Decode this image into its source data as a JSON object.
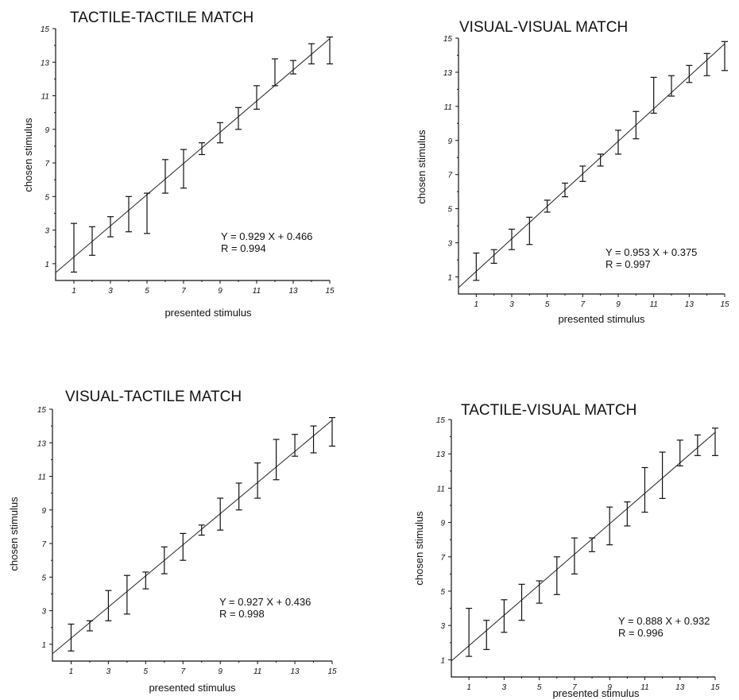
{
  "chart_data": [
    {
      "type": "scatter",
      "title": "TACTILE-TACTILE MATCH",
      "xlabel": "presented stimulus",
      "ylabel": "chosen stimulus",
      "xlim": [
        0,
        15
      ],
      "ylim": [
        0,
        15
      ],
      "xticks": [
        "1",
        "3",
        "5",
        "7",
        "9",
        "11",
        "13",
        "15"
      ],
      "yticks": [
        "1",
        "3",
        "5",
        "7",
        "9",
        "11",
        "13",
        "15"
      ],
      "equation": "Y = 0.929 X + 0.466",
      "r_text": "R = 0.994",
      "slope": 0.929,
      "intercept": 0.466,
      "x": [
        1,
        2,
        3,
        4,
        5,
        6,
        7,
        8,
        9,
        10,
        11,
        12,
        13,
        14,
        15
      ],
      "y_low": [
        0.5,
        1.5,
        2.6,
        2.9,
        2.8,
        5.2,
        5.5,
        7.5,
        8.2,
        9.0,
        10.2,
        11.6,
        12.3,
        12.9,
        12.9
      ],
      "y_high": [
        3.4,
        3.2,
        3.8,
        5.0,
        5.2,
        7.2,
        7.8,
        8.2,
        9.4,
        10.3,
        11.6,
        13.2,
        13.1,
        14.1,
        14.5
      ]
    },
    {
      "type": "scatter",
      "title": "VISUAL-VISUAL MATCH",
      "xlabel": "presented stimulus",
      "ylabel": "chosen stimulus",
      "xlim": [
        0,
        15
      ],
      "ylim": [
        0,
        15
      ],
      "xticks": [
        "1",
        "3",
        "5",
        "7",
        "9",
        "11",
        "13",
        "15"
      ],
      "yticks": [
        "1",
        "3",
        "5",
        "7",
        "9",
        "11",
        "13",
        "15"
      ],
      "equation": "Y = 0.953 X + 0.375",
      "r_text": "R = 0.997",
      "slope": 0.953,
      "intercept": 0.375,
      "x": [
        1,
        2,
        3,
        4,
        5,
        6,
        7,
        8,
        9,
        10,
        11,
        12,
        13,
        14,
        15
      ],
      "y_low": [
        0.8,
        1.8,
        2.6,
        2.9,
        4.8,
        5.7,
        6.6,
        7.5,
        8.2,
        9.1,
        10.6,
        11.6,
        12.4,
        12.8,
        13.1
      ],
      "y_high": [
        2.4,
        2.6,
        3.8,
        4.5,
        5.5,
        6.5,
        7.5,
        8.2,
        9.6,
        10.7,
        12.7,
        12.8,
        13.4,
        14.1,
        14.8
      ]
    },
    {
      "type": "scatter",
      "title": "VISUAL-TACTILE MATCH",
      "xlabel": "presented stimulus",
      "ylabel": "chosen stimulus",
      "xlim": [
        0,
        15
      ],
      "ylim": [
        0,
        15
      ],
      "xticks": [
        "1",
        "3",
        "5",
        "7",
        "9",
        "11",
        "13",
        "15"
      ],
      "yticks": [
        "1",
        "3",
        "5",
        "7",
        "9",
        "11",
        "13",
        "15"
      ],
      "equation": "Y = 0.927 X + 0.436",
      "r_text": "R = 0.998",
      "slope": 0.927,
      "intercept": 0.436,
      "x": [
        1,
        2,
        3,
        4,
        5,
        6,
        7,
        8,
        9,
        10,
        11,
        12,
        13,
        14,
        15
      ],
      "y_low": [
        0.6,
        1.8,
        2.4,
        2.8,
        4.3,
        5.2,
        6.0,
        7.5,
        7.8,
        9.0,
        9.7,
        10.8,
        12.2,
        12.4,
        12.8
      ],
      "y_high": [
        2.2,
        2.4,
        4.2,
        5.1,
        5.3,
        6.8,
        7.6,
        8.1,
        9.7,
        10.6,
        11.8,
        13.2,
        13.5,
        14.0,
        14.5
      ]
    },
    {
      "type": "scatter",
      "title": "TACTILE-VISUAL MATCH",
      "xlabel": "presented stimulus",
      "ylabel": "chosen stimulus",
      "xlim": [
        0,
        15
      ],
      "ylim": [
        0,
        15
      ],
      "xticks": [
        "1",
        "3",
        "5",
        "7",
        "9",
        "11",
        "13",
        "15"
      ],
      "yticks": [
        "1",
        "3",
        "5",
        "7",
        "9",
        "11",
        "13",
        "15"
      ],
      "equation": "Y = 0.888 X + 0.932",
      "r_text": "R = 0.996",
      "slope": 0.888,
      "intercept": 0.932,
      "x": [
        1,
        2,
        3,
        4,
        5,
        6,
        7,
        8,
        9,
        10,
        11,
        12,
        13,
        14,
        15
      ],
      "y_low": [
        1.2,
        1.6,
        2.6,
        3.3,
        4.3,
        4.8,
        6.0,
        7.3,
        7.7,
        8.8,
        9.6,
        10.4,
        12.3,
        12.9,
        12.9
      ],
      "y_high": [
        4.0,
        3.3,
        4.5,
        5.4,
        5.6,
        7.0,
        8.1,
        8.1,
        9.9,
        10.2,
        12.2,
        13.1,
        13.8,
        14.1,
        14.5
      ]
    }
  ]
}
